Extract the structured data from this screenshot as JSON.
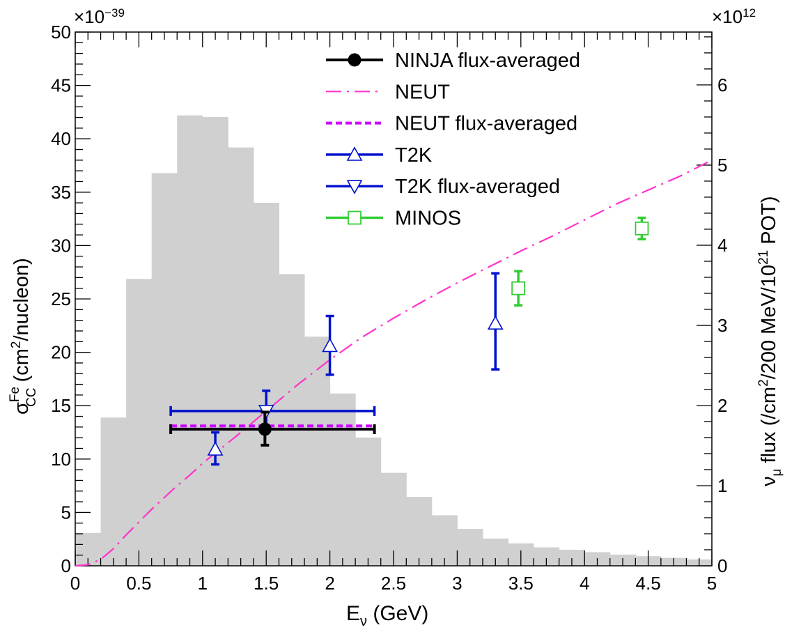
{
  "chart_data": {
    "type": "composite",
    "xlabel_main": "E",
    "xlabel_sub": "ν",
    "xlabel_rest": " (GeV)",
    "ylabel_left_prefix": "σ",
    "ylabel_left_sup": "Fe",
    "ylabel_left_sub": "CC",
    "ylabel_left_mid": " (cm",
    "ylabel_left_sup2": "2",
    "ylabel_left_rest": "/nucleon)",
    "ylabel_right_a": "ν",
    "ylabel_right_sub": "μ",
    "ylabel_right_b": " flux (/cm",
    "ylabel_right_sup": "2",
    "ylabel_right_c": "/200 MeV/10",
    "ylabel_right_sup2": "21",
    "ylabel_right_d": " POT)",
    "left_multiplier_base": "×10",
    "left_multiplier_exp": "−39",
    "right_multiplier_base": "×10",
    "right_multiplier_exp": "12",
    "xlim": [
      0,
      5
    ],
    "ylim_left": [
      0,
      50
    ],
    "ylim_right": [
      0,
      6.66
    ],
    "x_ticks": [
      0,
      0.5,
      1,
      1.5,
      2,
      2.5,
      3,
      3.5,
      4,
      4.5,
      5
    ],
    "x_tick_labels": [
      "0",
      "0.5",
      "1",
      "1.5",
      "2",
      "2.5",
      "3",
      "3.5",
      "4",
      "4.5",
      "5"
    ],
    "y_left_ticks": [
      0,
      5,
      10,
      15,
      20,
      25,
      30,
      35,
      40,
      45,
      50
    ],
    "y_left_tick_labels": [
      "0",
      "5",
      "10",
      "15",
      "20",
      "25",
      "30",
      "35",
      "40",
      "45",
      "50"
    ],
    "y_right_ticks": [
      0,
      1,
      2,
      3,
      4,
      5,
      6
    ],
    "y_right_tick_labels": [
      "0",
      "1",
      "2",
      "3",
      "4",
      "5",
      "6"
    ],
    "flux_histogram": {
      "name": "ν flux",
      "color": "#d0d0d0",
      "bin_edges": [
        0,
        0.2,
        0.4,
        0.6,
        0.8,
        1.0,
        1.2,
        1.4,
        1.6,
        1.8,
        2.0,
        2.2,
        2.4,
        2.6,
        2.8,
        3.0,
        3.2,
        3.4,
        3.6,
        3.8,
        4.0,
        4.2,
        4.4,
        4.6,
        4.8,
        5.0
      ],
      "values": [
        0.41,
        1.85,
        3.58,
        4.9,
        5.62,
        5.6,
        5.22,
        4.53,
        3.64,
        2.86,
        2.15,
        1.6,
        1.16,
        0.86,
        0.63,
        0.46,
        0.34,
        0.28,
        0.23,
        0.2,
        0.17,
        0.14,
        0.12,
        0.1,
        0.08
      ]
    },
    "neut_curve": {
      "name": "NEUT",
      "color": "#ff33cc",
      "x": [
        0.0,
        0.1,
        0.2,
        0.3,
        0.4,
        0.5,
        0.6,
        0.7,
        0.8,
        0.9,
        1.0,
        1.25,
        1.5,
        1.75,
        2.0,
        2.25,
        2.5,
        2.75,
        3.0,
        3.25,
        3.5,
        3.75,
        4.0,
        4.25,
        4.5,
        4.75,
        5.0
      ],
      "y": [
        0.0,
        0.1,
        0.6,
        1.6,
        2.9,
        4.1,
        5.3,
        6.4,
        7.5,
        8.5,
        9.6,
        12.0,
        14.5,
        17.0,
        19.3,
        21.4,
        23.2,
        24.9,
        26.5,
        28.0,
        29.5,
        30.9,
        32.4,
        33.9,
        35.2,
        36.5,
        38.0
      ]
    },
    "neut_flux_averaged": {
      "name": "NEUT flux-averaged",
      "color": "#cc00ff",
      "y": 13.1,
      "xmin": 0.75,
      "xmax": 2.35
    },
    "ninja": {
      "name": "NINJA flux-averaged",
      "color": "#000000",
      "x": 1.49,
      "y": 12.8,
      "xerr": [
        0.74,
        0.86
      ],
      "yerr": [
        1.5,
        1.6
      ]
    },
    "t2k": {
      "name": "T2K",
      "color": "#0011cc",
      "points": [
        {
          "x": 1.1,
          "y": 10.9,
          "yerr": [
            1.4,
            1.6
          ]
        },
        {
          "x": 2.0,
          "y": 20.6,
          "yerr": [
            2.7,
            2.8
          ]
        },
        {
          "x": 3.3,
          "y": 22.7,
          "yerr": [
            4.3,
            4.7
          ]
        }
      ]
    },
    "t2k_flux_averaged": {
      "name": "T2K flux-averaged",
      "color": "#0011cc",
      "x": 1.5,
      "y": 14.5,
      "xerr": [
        0.75,
        0.85
      ],
      "yerr": [
        1.5,
        1.9
      ]
    },
    "minos": {
      "name": "MINOS",
      "color": "#33cc33",
      "points": [
        {
          "x": 3.48,
          "y": 26.0,
          "yerr": [
            1.6,
            1.6
          ]
        },
        {
          "x": 4.45,
          "y": 31.6,
          "yerr": [
            1.0,
            1.0
          ]
        }
      ]
    },
    "legend": {
      "position": "top-right",
      "entries": [
        {
          "label": "NINJA flux-averaged",
          "style": "ninja"
        },
        {
          "label": "NEUT",
          "style": "neut"
        },
        {
          "label": "NEUT flux-averaged",
          "style": "neutavg"
        },
        {
          "label": "T2K",
          "style": "t2k"
        },
        {
          "label": "T2K flux-averaged",
          "style": "t2kavg"
        },
        {
          "label": "MINOS",
          "style": "minos"
        }
      ]
    }
  }
}
